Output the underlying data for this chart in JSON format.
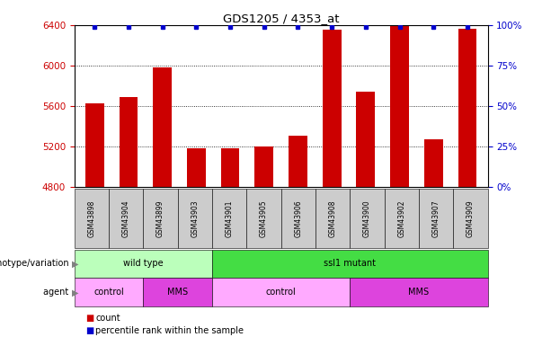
{
  "title": "GDS1205 / 4353_at",
  "samples": [
    "GSM43898",
    "GSM43904",
    "GSM43899",
    "GSM43903",
    "GSM43901",
    "GSM43905",
    "GSM43906",
    "GSM43908",
    "GSM43900",
    "GSM43902",
    "GSM43907",
    "GSM43909"
  ],
  "counts": [
    5630,
    5690,
    5980,
    5180,
    5185,
    5200,
    5310,
    6360,
    5740,
    6390,
    5270,
    6370
  ],
  "ylim_left": [
    4800,
    6400
  ],
  "ylim_right": [
    0,
    100
  ],
  "yticks_left": [
    4800,
    5200,
    5600,
    6000,
    6400
  ],
  "yticks_right": [
    0,
    25,
    50,
    75,
    100
  ],
  "bar_color": "#cc0000",
  "dot_color": "#0000cc",
  "bar_width": 0.55,
  "genotype_groups": [
    {
      "label": "wild type",
      "start": 0,
      "end": 4,
      "color": "#bbffbb"
    },
    {
      "label": "ssl1 mutant",
      "start": 4,
      "end": 12,
      "color": "#44dd44"
    }
  ],
  "agent_groups": [
    {
      "label": "control",
      "start": 0,
      "end": 2,
      "color": "#ffaaff"
    },
    {
      "label": "MMS",
      "start": 2,
      "end": 4,
      "color": "#dd44dd"
    },
    {
      "label": "control",
      "start": 4,
      "end": 8,
      "color": "#ffaaff"
    },
    {
      "label": "MMS",
      "start": 8,
      "end": 12,
      "color": "#dd44dd"
    }
  ],
  "legend_count_label": "count",
  "legend_percentile_label": "percentile rank within the sample",
  "genotype_label": "genotype/variation",
  "agent_label": "agent",
  "tick_label_color_left": "#cc0000",
  "tick_label_color_right": "#0000cc",
  "xtick_bg_color": "#cccccc",
  "grid_yticks": [
    5200,
    5600,
    6000
  ]
}
